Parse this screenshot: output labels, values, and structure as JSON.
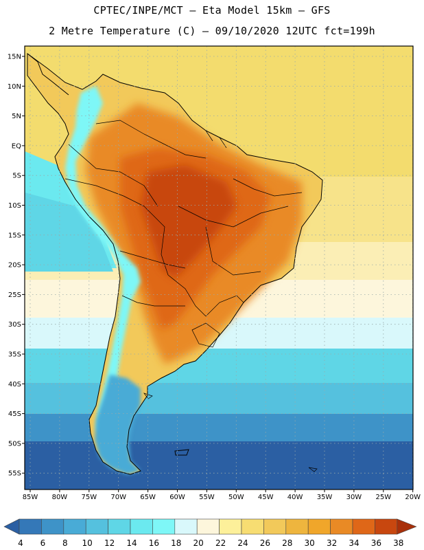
{
  "header": {
    "line1": "CPTEC/INPE/MCT –  Eta Model 15km – GFS",
    "line2": "2 Metre Temperature (C) – 09/10/2020 12UTC fct=199h"
  },
  "map": {
    "region": "South America",
    "lat_labels": [
      "15N",
      "10N",
      "5N",
      "EQ",
      "5S",
      "10S",
      "15S",
      "20S",
      "25S",
      "30S",
      "35S",
      "40S",
      "45S",
      "50S",
      "55S"
    ],
    "lon_labels": [
      "85W",
      "80W",
      "75W",
      "70W",
      "65W",
      "60W",
      "55W",
      "50W",
      "45W",
      "40W",
      "35W",
      "30W",
      "25W",
      "20W"
    ]
  },
  "colorbar": {
    "labels": [
      "4",
      "6",
      "8",
      "10",
      "12",
      "14",
      "16",
      "18",
      "20",
      "22",
      "24",
      "26",
      "28",
      "30",
      "32",
      "34",
      "36",
      "38"
    ],
    "colors": [
      "#2b5fa3",
      "#3478b8",
      "#3e93c8",
      "#49abd6",
      "#55c1de",
      "#5fd6e6",
      "#6be9ef",
      "#7ef7f7",
      "#d9f8fb",
      "#fdf6dc",
      "#fdf09a",
      "#f7dd72",
      "#f2c95a",
      "#eeb53e",
      "#f0a62a",
      "#e98a25",
      "#df6718",
      "#c8470f",
      "#a8300a"
    ]
  },
  "palette": {
    "ocean_north": "#f3dc6e",
    "ocean_subtropic": "#fdf6dc",
    "ocean_mid": "#5fd6e6",
    "ocean_south": "#2b5fa3",
    "land_hot": "#c8470f",
    "land_warm": "#e98a25",
    "andes_cold": "#7ef7f7",
    "patagonia": "#49abd6"
  }
}
